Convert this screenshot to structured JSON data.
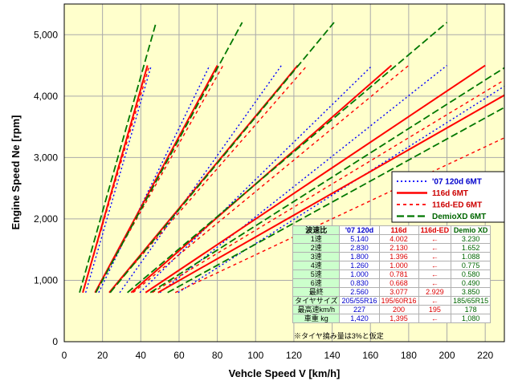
{
  "chart_data": {
    "type": "line",
    "title": "",
    "xlabel": "Vehcle Speed V [km/h]",
    "ylabel": "Engine Speed Ne [rpm]",
    "xlim": [
      0,
      230
    ],
    "ylim": [
      0,
      5500
    ],
    "x_ticks": [
      "0",
      "20",
      "40",
      "60",
      "80",
      "100",
      "120",
      "140",
      "160",
      "180",
      "200",
      "220"
    ],
    "y_ticks": [
      "0",
      "1,000",
      "2,000",
      "3,000",
      "4,000",
      "5,000"
    ],
    "grid": true,
    "legend_position": "right",
    "series": [
      {
        "name": "'07 120d 6MT",
        "color": "#0000ff",
        "style": "dotted",
        "gears": [
          {
            "gear": "1",
            "from": [
              11.2,
              800
            ],
            "to": [
              45.5,
              4500
            ]
          },
          {
            "gear": "2",
            "from": [
              18.0,
              800
            ],
            "to": [
              76.0,
              4500
            ]
          },
          {
            "gear": "3",
            "from": [
              29.0,
              800
            ],
            "to": [
              113.5,
              4500
            ]
          },
          {
            "gear": "4",
            "from": [
              39.5,
              800
            ],
            "to": [
              161.0,
              4500
            ]
          },
          {
            "gear": "5",
            "from": [
              50.0,
              800
            ],
            "to": [
              200.0,
              4500
            ]
          },
          {
            "gear": "6",
            "from": [
              59.5,
              800
            ],
            "to": [
              232.0,
              4200
            ]
          }
        ]
      },
      {
        "name": "116d 6MT",
        "color": "#ff0000",
        "style": "solid",
        "gears": [
          {
            "gear": "1",
            "from": [
              9.7,
              800
            ],
            "to": [
              43.5,
              4500
            ]
          },
          {
            "gear": "2",
            "from": [
              16.1,
              800
            ],
            "to": [
              80.0,
              4500
            ]
          },
          {
            "gear": "3",
            "from": [
              23.5,
              800
            ],
            "to": [
              122.0,
              4500
            ]
          },
          {
            "gear": "4",
            "from": [
              35.0,
              800
            ],
            "to": [
              171.0,
              4500
            ]
          },
          {
            "gear": "5",
            "from": [
              42.5,
              800
            ],
            "to": [
              220.0,
              4500
            ]
          },
          {
            "gear": "6",
            "from": [
              49.0,
              800
            ],
            "to": [
              232.0,
              4050
            ]
          }
        ]
      },
      {
        "name": "116d-ED 6MT",
        "color": "#ff0000",
        "style": "dashed",
        "gears": [
          {
            "gear": "1",
            "from": [
              9.7,
              800
            ],
            "to": [
              44.5,
              4500
            ]
          },
          {
            "gear": "2",
            "from": [
              16.1,
              800
            ],
            "to": [
              83.0,
              4500
            ]
          },
          {
            "gear": "3",
            "from": [
              23.5,
              800
            ],
            "to": [
              127.0,
              4500
            ]
          },
          {
            "gear": "4",
            "from": [
              36.0,
              800
            ],
            "to": [
              180.0,
              4500
            ]
          },
          {
            "gear": "5",
            "from": [
              46.0,
              800
            ],
            "to": [
              232.0,
              4300
            ]
          },
          {
            "gear": "6",
            "from": [
              58.0,
              800
            ],
            "to": [
              232.0,
              3350
            ]
          }
        ]
      },
      {
        "name": "DemioXD 6MT",
        "color": "#007700",
        "style": "longdash",
        "gears": [
          {
            "gear": "1",
            "from": [
              8.0,
              800
            ],
            "to": [
              48.0,
              5200
            ]
          },
          {
            "gear": "2",
            "from": [
              16.5,
              800
            ],
            "to": [
              93.0,
              5200
            ]
          },
          {
            "gear": "3",
            "from": [
              24.0,
              800
            ],
            "to": [
              141.0,
              5200
            ]
          },
          {
            "gear": "4",
            "from": [
              33.0,
              800
            ],
            "to": [
              200.0,
              5200
            ]
          },
          {
            "gear": "5",
            "from": [
              45.0,
              800
            ],
            "to": [
              232.0,
              4500
            ]
          },
          {
            "gear": "6",
            "from": [
              54.0,
              800
            ],
            "to": [
              232.0,
              3850
            ]
          }
        ]
      }
    ]
  },
  "spec_table": {
    "header": [
      "波速比",
      "'07 120d",
      "116d",
      "116d-ED",
      "Demio XD"
    ],
    "rows": [
      [
        "1速",
        "5.140",
        "4.002",
        "←",
        "3.230"
      ],
      [
        "2速",
        "2.830",
        "2.130",
        "←",
        "1.652"
      ],
      [
        "3速",
        "1.800",
        "1.396",
        "←",
        "1.088"
      ],
      [
        "4速",
        "1.260",
        "1.000",
        "←",
        "0.775"
      ],
      [
        "5速",
        "1.000",
        "0.781",
        "←",
        "0.580"
      ],
      [
        "6速",
        "0.830",
        "0.668",
        "←",
        "0.490"
      ],
      [
        "最終",
        "2.560",
        "3.077",
        "2.929",
        "3.850"
      ],
      [
        "タイヤサイズ",
        "205/55R16",
        "195/60R16",
        "←",
        "185/65R15"
      ],
      [
        "最高速km/h",
        "227",
        "200",
        "195",
        "178"
      ],
      [
        "車重 kg",
        "1,420",
        "1,395",
        "←",
        "1,080"
      ]
    ],
    "note": "※タイヤ撓み量は3%と仮定"
  }
}
